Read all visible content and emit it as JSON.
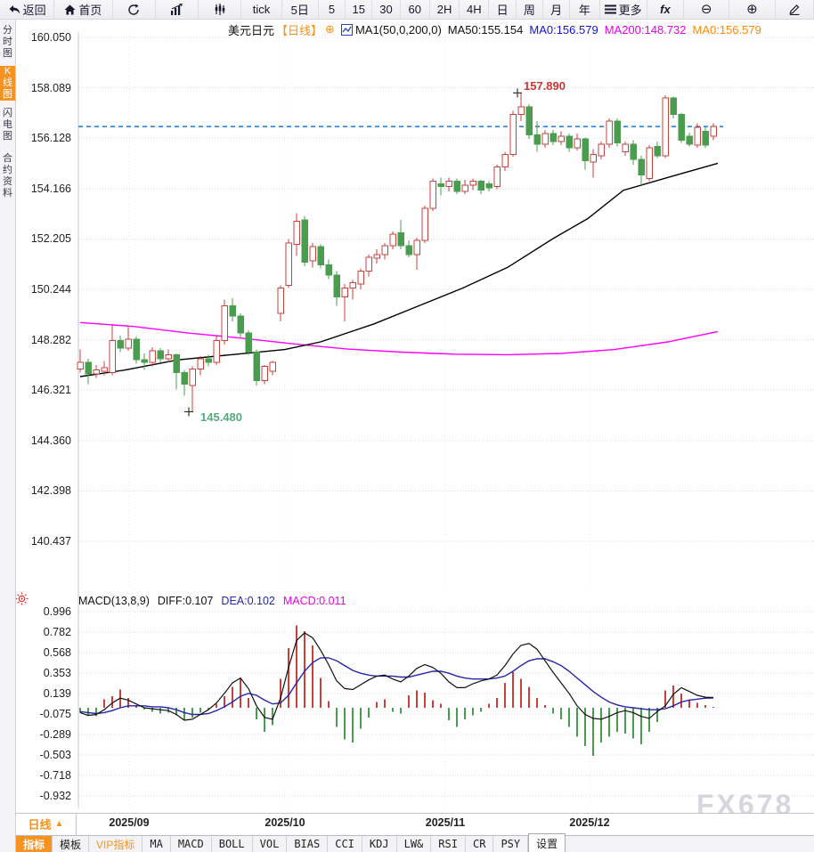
{
  "toolbar": {
    "items": [
      {
        "name": "back",
        "label": "返回",
        "icon": "back-arrow"
      },
      {
        "name": "home",
        "label": "首页",
        "icon": "home"
      },
      {
        "name": "refresh",
        "label": "",
        "icon": "refresh"
      },
      {
        "name": "bar-chart",
        "label": "",
        "icon": "bar-chart"
      },
      {
        "name": "volume-chart",
        "label": "",
        "icon": "candlestick"
      },
      {
        "name": "interval-tick",
        "label": "tick"
      },
      {
        "name": "interval-5d",
        "label": "5日"
      },
      {
        "name": "interval-5",
        "label": "5"
      },
      {
        "name": "interval-15",
        "label": "15"
      },
      {
        "name": "interval-30",
        "label": "30"
      },
      {
        "name": "interval-60",
        "label": "60"
      },
      {
        "name": "interval-2h",
        "label": "2H"
      },
      {
        "name": "interval-4h",
        "label": "4H"
      },
      {
        "name": "interval-day",
        "label": "日"
      },
      {
        "name": "interval-week",
        "label": "周"
      },
      {
        "name": "interval-month",
        "label": "月"
      },
      {
        "name": "interval-year",
        "label": "年"
      },
      {
        "name": "more",
        "label": "更多",
        "icon": "menu"
      },
      {
        "name": "indicator-fx",
        "label": "fx"
      },
      {
        "name": "zoom-out",
        "label": "⊖"
      },
      {
        "name": "zoom-in",
        "label": "⊕"
      },
      {
        "name": "draw",
        "label": "",
        "icon": "pencil"
      }
    ]
  },
  "sidebar": {
    "tabs": [
      {
        "label": "分时图",
        "active": false
      },
      {
        "label": "K线图",
        "active": true
      },
      {
        "label": "闪电图",
        "active": false
      },
      {
        "label": "合约资料",
        "active": false
      }
    ]
  },
  "chart_header": {
    "symbol": "美元日元",
    "period_tag": "【日线】",
    "add_glyph": "⊕",
    "ma_settings": "MA1(50,0,200,0)",
    "ma50": "MA50:155.154",
    "ma0_blue": "MA0:156.579",
    "ma200": "MA200:148.732",
    "ma0_orange": "MA0:156.579"
  },
  "macd_header": {
    "title": "MACD(13,8,9)",
    "diff": "DIFF:0.107",
    "dea": "DEA:0.102",
    "macd": "MACD:0.011"
  },
  "annotations": {
    "high": "157.890",
    "low": "145.480"
  },
  "footer": {
    "period_box": "日线",
    "period_arrow": "▲",
    "tabs": [
      {
        "label": "指标",
        "cn": true,
        "active": true
      },
      {
        "label": "模板",
        "cn": true
      },
      {
        "label": "VIP指标",
        "cn": true,
        "vip": true
      },
      {
        "label": "MA"
      },
      {
        "label": "MACD"
      },
      {
        "label": "BOLL"
      },
      {
        "label": "VOL"
      },
      {
        "label": "BIAS"
      },
      {
        "label": "CCI"
      },
      {
        "label": "KDJ"
      },
      {
        "label": "LW&"
      },
      {
        "label": "RSI"
      },
      {
        "label": "CR"
      },
      {
        "label": "PSY"
      },
      {
        "label": "设置",
        "cn": true,
        "boxed": true
      }
    ]
  },
  "watermark": "FX678",
  "colors": {
    "accent_orange": "#f7931e",
    "up_red": "#c9413d",
    "down_green": "#4a9c4f",
    "ma50_black": "#000000",
    "ma200_magenta": "#ff00ff",
    "dea_blue": "#2626a8",
    "diff_black": "#111111",
    "price_line_blue": "#1777d6",
    "grid_gray": "#d9d9de",
    "axis_gray": "#c8c8d0",
    "marker_dark": "#333333",
    "high_label_red": "#cc3333",
    "low_label_green": "#54ab7c",
    "sun_red": "#e03030"
  },
  "chart_data": {
    "type": "candlestick+macd",
    "symbol": "美元日元 (USD/JPY)",
    "interval": "日线 (daily)",
    "price_axis_ticks": [
      "160.050",
      "158.089",
      "156.128",
      "154.166",
      "152.205",
      "150.244",
      "148.282",
      "146.321",
      "144.360",
      "142.398",
      "140.437"
    ],
    "macd_axis_ticks": [
      "0.996",
      "0.782",
      "0.568",
      "0.353",
      "0.139",
      "-0.075",
      "-0.289",
      "-0.503",
      "-0.718",
      "-0.932"
    ],
    "x_labels": [
      "2025/09",
      "2025/10",
      "2025/11",
      "2025/12"
    ],
    "current_price": 156.579,
    "marked_high": 157.89,
    "marked_low": 145.48,
    "high_index": 55,
    "low_index": 14,
    "candles": [
      [
        147.15,
        147.9,
        147.0,
        147.4
      ],
      [
        147.4,
        147.55,
        146.55,
        146.95
      ],
      [
        146.95,
        147.3,
        146.8,
        147.1
      ],
      [
        147.05,
        147.45,
        146.9,
        147.2
      ],
      [
        147.0,
        148.9,
        146.9,
        148.25
      ],
      [
        148.25,
        148.45,
        147.8,
        147.95
      ],
      [
        147.95,
        148.8,
        147.85,
        148.3
      ],
      [
        148.3,
        148.4,
        147.35,
        147.5
      ],
      [
        147.5,
        147.75,
        147.1,
        147.4
      ],
      [
        147.4,
        148.0,
        147.25,
        147.85
      ],
      [
        147.85,
        147.95,
        147.4,
        147.55
      ],
      [
        147.55,
        147.9,
        147.4,
        147.7
      ],
      [
        147.7,
        147.75,
        146.35,
        147.0
      ],
      [
        147.0,
        147.1,
        146.1,
        146.55
      ],
      [
        146.5,
        147.25,
        145.48,
        147.15
      ],
      [
        147.15,
        147.65,
        146.9,
        147.55
      ],
      [
        147.55,
        147.7,
        147.25,
        147.4
      ],
      [
        147.4,
        148.45,
        147.3,
        148.25
      ],
      [
        148.25,
        149.85,
        148.1,
        149.6
      ],
      [
        149.6,
        149.9,
        149.0,
        149.2
      ],
      [
        149.2,
        149.3,
        148.35,
        148.55
      ],
      [
        148.55,
        148.65,
        147.7,
        147.8
      ],
      [
        147.8,
        147.9,
        146.5,
        146.7
      ],
      [
        146.7,
        147.3,
        146.55,
        147.25
      ],
      [
        147.05,
        147.45,
        146.9,
        147.4
      ],
      [
        149.3,
        150.4,
        149.0,
        150.3
      ],
      [
        150.4,
        152.2,
        150.3,
        152.05
      ],
      [
        152.0,
        153.2,
        151.55,
        152.9
      ],
      [
        152.95,
        153.1,
        151.15,
        151.3
      ],
      [
        151.35,
        152.05,
        151.1,
        151.9
      ],
      [
        151.9,
        152.0,
        151.05,
        151.2
      ],
      [
        151.2,
        151.4,
        150.65,
        150.8
      ],
      [
        150.8,
        150.95,
        149.6,
        149.95
      ],
      [
        149.95,
        150.45,
        149.0,
        150.3
      ],
      [
        150.3,
        150.6,
        149.85,
        150.5
      ],
      [
        150.45,
        151.05,
        150.25,
        150.95
      ],
      [
        150.95,
        151.6,
        150.75,
        151.5
      ],
      [
        151.45,
        151.8,
        151.25,
        151.6
      ],
      [
        151.6,
        152.05,
        151.4,
        151.95
      ],
      [
        151.95,
        152.5,
        151.8,
        152.4
      ],
      [
        152.45,
        152.95,
        151.8,
        151.95
      ],
      [
        151.95,
        152.15,
        151.5,
        151.6
      ],
      [
        151.6,
        152.25,
        151.0,
        152.15
      ],
      [
        152.15,
        153.5,
        152.05,
        153.4
      ],
      [
        153.4,
        154.55,
        153.3,
        154.45
      ],
      [
        154.35,
        154.6,
        153.9,
        154.25
      ],
      [
        154.25,
        154.6,
        154.05,
        154.45
      ],
      [
        154.45,
        154.55,
        153.95,
        154.05
      ],
      [
        154.05,
        154.5,
        153.95,
        154.3
      ],
      [
        154.3,
        154.55,
        154.1,
        154.45
      ],
      [
        154.45,
        154.5,
        153.95,
        154.1
      ],
      [
        154.35,
        154.45,
        154.05,
        154.2
      ],
      [
        154.25,
        155.1,
        154.15,
        155.0
      ],
      [
        155.0,
        155.6,
        154.85,
        155.5
      ],
      [
        155.5,
        157.2,
        155.4,
        157.05
      ],
      [
        157.05,
        157.89,
        156.8,
        157.35
      ],
      [
        157.35,
        157.45,
        156.1,
        156.25
      ],
      [
        156.25,
        156.8,
        155.6,
        155.9
      ],
      [
        155.9,
        156.45,
        155.75,
        156.3
      ],
      [
        156.3,
        156.45,
        155.85,
        156.0
      ],
      [
        156.0,
        156.4,
        155.85,
        156.2
      ],
      [
        156.2,
        156.3,
        155.6,
        155.75
      ],
      [
        155.75,
        156.3,
        155.65,
        156.1
      ],
      [
        156.1,
        156.15,
        154.9,
        155.25
      ],
      [
        155.2,
        155.7,
        154.6,
        155.5
      ],
      [
        155.45,
        156.0,
        155.3,
        155.9
      ],
      [
        155.9,
        156.9,
        155.75,
        156.8
      ],
      [
        156.8,
        156.9,
        155.8,
        155.95
      ],
      [
        155.6,
        156.0,
        155.45,
        155.9
      ],
      [
        155.9,
        156.05,
        155.1,
        155.3
      ],
      [
        155.3,
        155.45,
        154.3,
        154.7
      ],
      [
        154.55,
        155.85,
        154.45,
        155.75
      ],
      [
        155.8,
        156.0,
        155.35,
        155.45
      ],
      [
        155.45,
        157.8,
        155.35,
        157.7
      ],
      [
        157.7,
        157.75,
        156.9,
        157.05
      ],
      [
        157.05,
        157.1,
        155.95,
        156.05
      ],
      [
        156.2,
        156.35,
        155.8,
        155.9
      ],
      [
        155.85,
        156.7,
        155.75,
        156.55
      ],
      [
        156.4,
        156.55,
        155.75,
        155.85
      ],
      [
        156.2,
        156.7,
        156.05,
        156.58
      ]
    ],
    "ma50_points": [
      [
        90,
        146.85
      ],
      [
        140,
        147.1
      ],
      [
        200,
        147.5
      ],
      [
        260,
        147.7
      ],
      [
        320,
        147.9
      ],
      [
        360,
        148.2
      ],
      [
        420,
        148.9
      ],
      [
        470,
        149.6
      ],
      [
        520,
        150.3
      ],
      [
        570,
        151.1
      ],
      [
        620,
        152.2
      ],
      [
        660,
        153.0
      ],
      [
        700,
        154.1
      ],
      [
        750,
        154.6
      ],
      [
        806,
        155.15
      ]
    ],
    "ma200_points": [
      [
        90,
        148.95
      ],
      [
        150,
        148.8
      ],
      [
        210,
        148.55
      ],
      [
        270,
        148.35
      ],
      [
        330,
        148.12
      ],
      [
        390,
        147.92
      ],
      [
        450,
        147.8
      ],
      [
        510,
        147.72
      ],
      [
        570,
        147.7
      ],
      [
        630,
        147.75
      ],
      [
        690,
        147.9
      ],
      [
        750,
        148.2
      ],
      [
        806,
        148.6
      ]
    ],
    "macd": {
      "params": "13,8,9",
      "diff_last": 0.107,
      "dea_last": 0.102,
      "macd_last": 0.011,
      "hist": [
        -0.05,
        -0.08,
        -0.09,
        0.09,
        0.12,
        0.19,
        0.1,
        0.03,
        -0.02,
        -0.04,
        -0.06,
        -0.05,
        -0.08,
        -0.13,
        -0.1,
        -0.05,
        -0.02,
        0.04,
        0.12,
        0.22,
        0.3,
        0.1,
        -0.12,
        -0.25,
        -0.18,
        0.3,
        0.62,
        0.86,
        0.8,
        0.65,
        0.31,
        0.07,
        -0.2,
        -0.33,
        -0.36,
        -0.22,
        -0.1,
        0.06,
        0.09,
        -0.04,
        -0.06,
        0.13,
        0.18,
        0.16,
        0.08,
        0.04,
        -0.13,
        -0.2,
        -0.12,
        -0.08,
        -0.04,
        0.04,
        0.1,
        0.26,
        0.37,
        0.3,
        0.22,
        0.1,
        0.03,
        -0.06,
        -0.12,
        -0.2,
        -0.3,
        -0.4,
        -0.5,
        -0.36,
        -0.3,
        -0.25,
        -0.27,
        -0.32,
        -0.38,
        -0.25,
        -0.15,
        0.18,
        0.23,
        0.15,
        0.09,
        0.05,
        0.03,
        0.011
      ],
      "diff": [
        -0.05,
        -0.08,
        -0.07,
        -0.02,
        0.05,
        0.1,
        0.08,
        0.04,
        0.0,
        -0.01,
        -0.02,
        -0.03,
        -0.07,
        -0.13,
        -0.12,
        -0.07,
        -0.02,
        0.05,
        0.15,
        0.26,
        0.31,
        0.2,
        0.02,
        -0.1,
        -0.12,
        0.1,
        0.42,
        0.7,
        0.78,
        0.73,
        0.6,
        0.45,
        0.28,
        0.2,
        0.19,
        0.24,
        0.29,
        0.33,
        0.34,
        0.3,
        0.27,
        0.33,
        0.41,
        0.45,
        0.42,
        0.36,
        0.27,
        0.21,
        0.21,
        0.25,
        0.28,
        0.3,
        0.34,
        0.44,
        0.56,
        0.65,
        0.67,
        0.61,
        0.49,
        0.37,
        0.26,
        0.15,
        0.02,
        -0.07,
        -0.11,
        -0.12,
        -0.09,
        -0.05,
        -0.03,
        -0.05,
        -0.09,
        -0.11,
        -0.04,
        0.02,
        0.14,
        0.21,
        0.17,
        0.13,
        0.11,
        0.107
      ],
      "dea": [
        -0.04,
        -0.05,
        -0.06,
        -0.05,
        -0.03,
        0.0,
        0.02,
        0.02,
        0.02,
        0.01,
        0.01,
        0.0,
        -0.02,
        -0.05,
        -0.07,
        -0.07,
        -0.06,
        -0.03,
        0.01,
        0.06,
        0.12,
        0.15,
        0.13,
        0.08,
        0.04,
        0.05,
        0.13,
        0.26,
        0.38,
        0.47,
        0.52,
        0.52,
        0.49,
        0.44,
        0.39,
        0.36,
        0.34,
        0.33,
        0.33,
        0.33,
        0.32,
        0.32,
        0.34,
        0.36,
        0.38,
        0.38,
        0.36,
        0.33,
        0.31,
        0.3,
        0.3,
        0.3,
        0.31,
        0.33,
        0.38,
        0.44,
        0.49,
        0.51,
        0.51,
        0.48,
        0.44,
        0.38,
        0.31,
        0.24,
        0.17,
        0.11,
        0.06,
        0.03,
        0.01,
        0.0,
        -0.01,
        -0.02,
        -0.02,
        -0.01,
        0.02,
        0.06,
        0.08,
        0.09,
        0.1,
        0.102
      ]
    }
  }
}
